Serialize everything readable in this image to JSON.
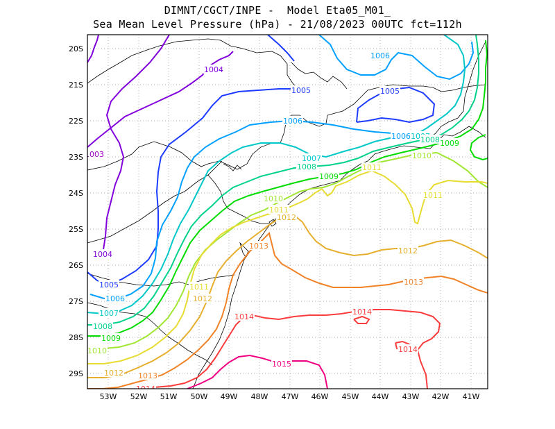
{
  "title": {
    "line1": "DIMNT/CGCT/INPE -  Model Eta05_M01_",
    "line2": "Sea Mean Level Pressure (hPa) - 21/08/2023 00UTC fct=112h"
  },
  "axes": {
    "lat_labels": [
      "20S",
      "21S",
      "22S",
      "23S",
      "24S",
      "25S",
      "26S",
      "27S",
      "28S",
      "29S"
    ],
    "lon_labels": [
      "53W",
      "52W",
      "51W",
      "50W",
      "49W",
      "48W",
      "47W",
      "46W",
      "45W",
      "44W",
      "43W",
      "42W",
      "41W"
    ]
  },
  "colors": {
    "c1003": "#a000c8",
    "c1004": "#8200dc",
    "c1005": "#1e3cff",
    "c1006": "#00a0ff",
    "c1007": "#00c8c8",
    "c1008": "#00d28c",
    "c1009": "#00dc00",
    "c1010": "#a0e632",
    "c1011": "#e6dc32",
    "c1012": "#e6af2d",
    "c1013": "#f08228",
    "c1014": "#fa3c3c",
    "c1015": "#f00082",
    "coast": "#000000"
  },
  "contour_labels": [
    {
      "text": "1003",
      "color": "c1003"
    },
    {
      "text": "1004",
      "color": "c1004"
    },
    {
      "text": "1004",
      "color": "c1004"
    },
    {
      "text": "1005",
      "color": "c1005"
    },
    {
      "text": "1005",
      "color": "c1005"
    },
    {
      "text": "1005",
      "color": "c1005"
    },
    {
      "text": "1006",
      "color": "c1006"
    },
    {
      "text": "1006",
      "color": "c1006"
    },
    {
      "text": "1006",
      "color": "c1006"
    },
    {
      "text": "1006",
      "color": "c1006"
    },
    {
      "text": "1007",
      "color": "c1007"
    },
    {
      "text": "1007",
      "color": "c1007"
    },
    {
      "text": "1007",
      "color": "c1007"
    },
    {
      "text": "1008",
      "color": "c1008"
    },
    {
      "text": "1008",
      "color": "c1008"
    },
    {
      "text": "1008",
      "color": "c1008"
    },
    {
      "text": "1009",
      "color": "c1009"
    },
    {
      "text": "1009",
      "color": "c1009"
    },
    {
      "text": "1009",
      "color": "c1009"
    },
    {
      "text": "1010",
      "color": "c1010"
    },
    {
      "text": "1010",
      "color": "c1010"
    },
    {
      "text": "1010",
      "color": "c1010"
    },
    {
      "text": "1011",
      "color": "c1011"
    },
    {
      "text": "1011",
      "color": "c1011"
    },
    {
      "text": "1011",
      "color": "c1011"
    },
    {
      "text": "1011",
      "color": "c1011"
    },
    {
      "text": "1012",
      "color": "c1012"
    },
    {
      "text": "1012",
      "color": "c1012"
    },
    {
      "text": "1012",
      "color": "c1012"
    },
    {
      "text": "1012",
      "color": "c1012"
    },
    {
      "text": "1013",
      "color": "c1013"
    },
    {
      "text": "1013",
      "color": "c1013"
    },
    {
      "text": "1013",
      "color": "c1013"
    },
    {
      "text": "1014",
      "color": "c1014"
    },
    {
      "text": "1014",
      "color": "c1014"
    },
    {
      "text": "1014",
      "color": "c1014"
    },
    {
      "text": "1014",
      "color": "c1014"
    },
    {
      "text": "1015",
      "color": "c1015"
    }
  ]
}
